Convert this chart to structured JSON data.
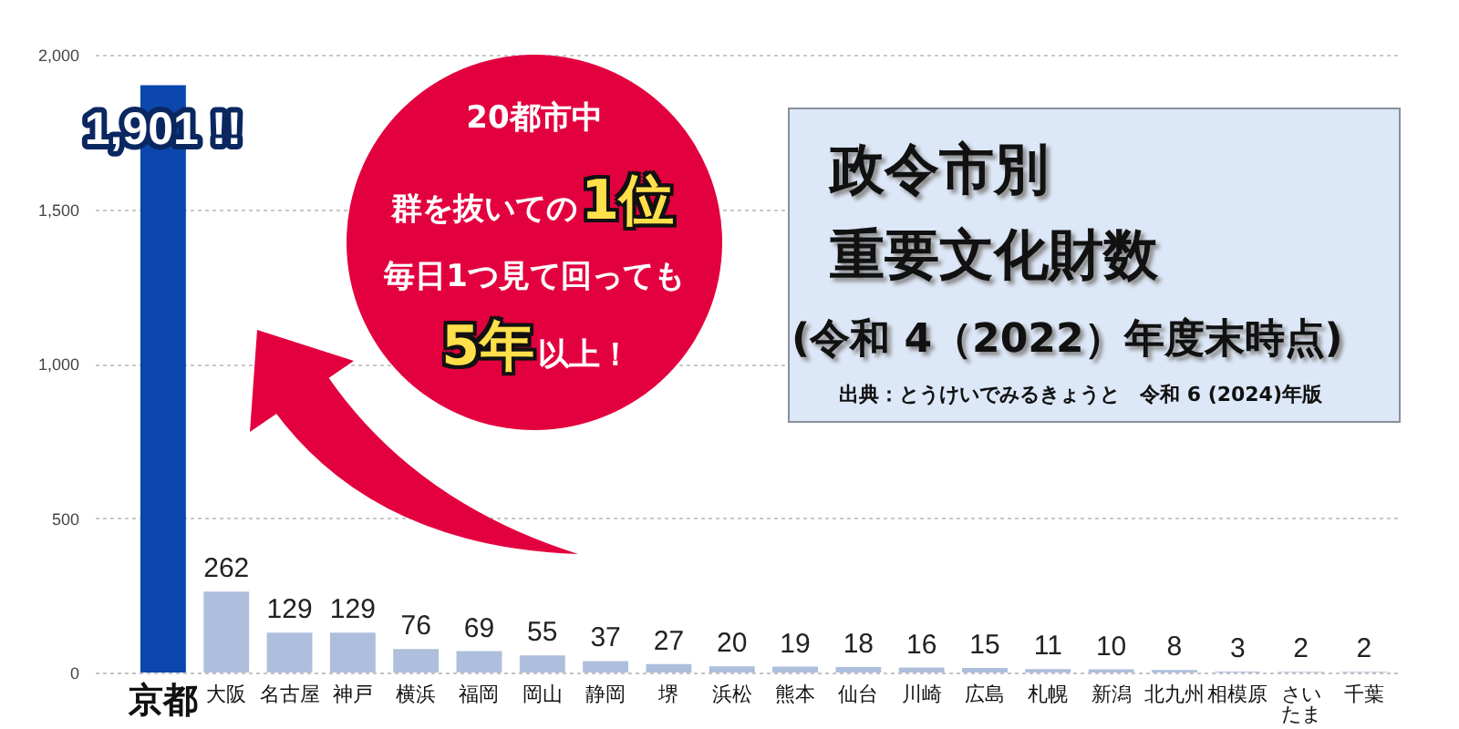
{
  "chart_data": {
    "type": "bar",
    "title": "政令市別重要文化財数",
    "subtitle": "(令和 4（2022）年度末時点)",
    "annotations": [
      "20都市中",
      "群を抜いての",
      "1位",
      "毎日1つ見て回っても",
      "5年",
      "以上！",
      "出典：とうけいでみるきょうと　令和 6 (2024)年版"
    ],
    "categories": [
      "京都",
      "大阪",
      "名古屋",
      "神戸",
      "横浜",
      "福岡",
      "岡山",
      "静岡",
      "堺",
      "浜松",
      "熊本",
      "仙台",
      "川崎",
      "広島",
      "札幌",
      "新潟",
      "北九州",
      "相模原",
      "さいたま",
      "千葉"
    ],
    "values": [
      1901,
      262,
      129,
      129,
      76,
      69,
      55,
      37,
      27,
      20,
      19,
      18,
      16,
      15,
      11,
      10,
      8,
      3,
      2,
      2
    ],
    "colors": [
      "#0b47ad",
      "#adbfdc",
      "#adbfdc",
      "#adbfdc",
      "#adbfdc",
      "#adbfdc",
      "#adbfdc",
      "#adbfdc",
      "#adbfdc",
      "#adbfdc",
      "#adbfdc",
      "#adbfdc",
      "#adbfdc",
      "#adbfdc",
      "#adbfdc",
      "#adbfdc",
      "#adbfdc",
      "#adbfdc",
      "#adbfdc",
      "#adbfdc"
    ],
    "value_labels": [
      "1,901 !!",
      "262",
      "129",
      "129",
      "76",
      "69",
      "55",
      "37",
      "27",
      "20",
      "19",
      "18",
      "16",
      "15",
      "11",
      "10",
      "8",
      "3",
      "2",
      "2"
    ],
    "ylim": [
      0,
      2000
    ],
    "yticks": [
      0,
      500,
      {
        "value": 1000,
        "label": "1,000"
      },
      {
        "value": 1500,
        "label": "1,500"
      },
      {
        "value": 2000,
        "label": "2,000"
      }
    ],
    "grid": "y"
  }
}
